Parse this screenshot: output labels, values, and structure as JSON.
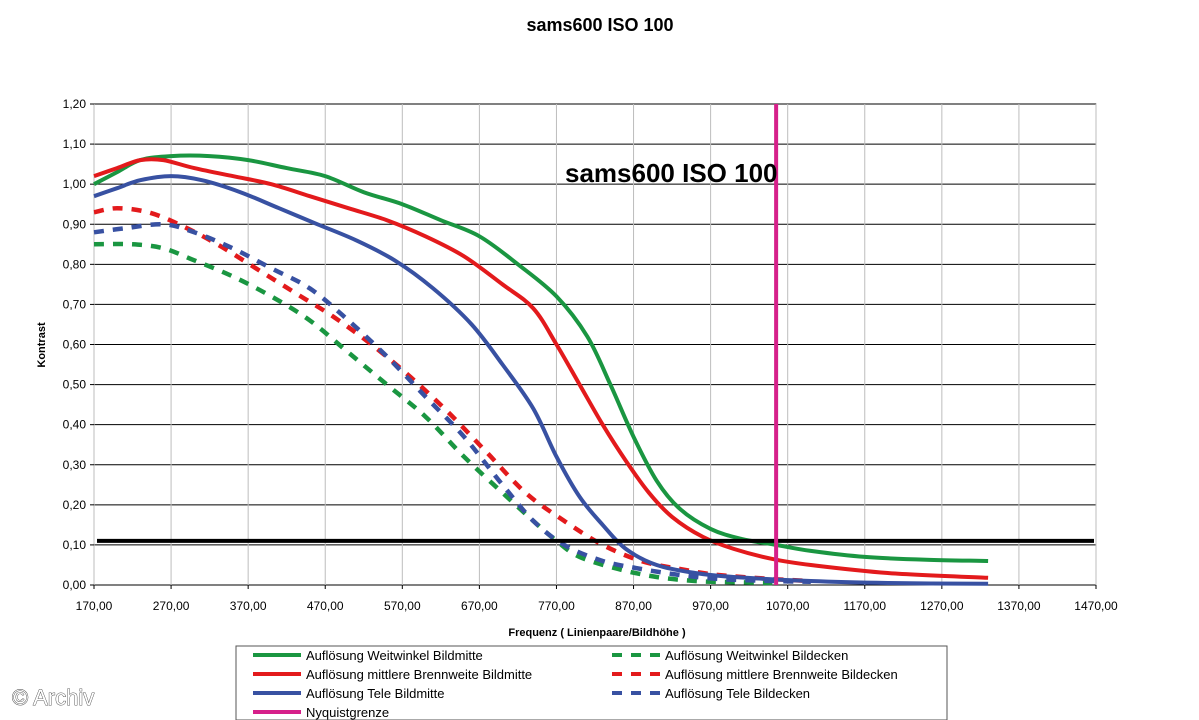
{
  "chart_data": {
    "type": "line",
    "title": "sams600 ISO 100",
    "inner_title": "sams600 ISO 100",
    "xlabel": "Frequenz ( Linienpaare/Bildhöhe )",
    "ylabel": "Kontrast",
    "xlim": [
      170,
      1470
    ],
    "ylim": [
      0,
      1.2
    ],
    "x_ticks": [
      "170,00",
      "270,00",
      "370,00",
      "470,00",
      "570,00",
      "670,00",
      "770,00",
      "870,00",
      "970,00",
      "1070,00",
      "1170,00",
      "1270,00",
      "1370,00",
      "1470,00"
    ],
    "y_ticks": [
      "0,00",
      "0,10",
      "0,20",
      "0,30",
      "0,40",
      "0,50",
      "0,60",
      "0,70",
      "0,80",
      "0,90",
      "1,00",
      "1,10",
      "1,20"
    ],
    "grid": true,
    "nyquist_x": 1055,
    "threshold_y": 0.11,
    "series": [
      {
        "name": "Auflösung Weitwinkel Bildmitte",
        "color": "#1a9641",
        "dash": false,
        "points": [
          [
            170,
            1.0
          ],
          [
            200,
            1.03
          ],
          [
            230,
            1.06
          ],
          [
            270,
            1.07
          ],
          [
            320,
            1.07
          ],
          [
            370,
            1.06
          ],
          [
            420,
            1.04
          ],
          [
            470,
            1.02
          ],
          [
            520,
            0.98
          ],
          [
            570,
            0.95
          ],
          [
            620,
            0.91
          ],
          [
            670,
            0.87
          ],
          [
            720,
            0.8
          ],
          [
            770,
            0.72
          ],
          [
            810,
            0.62
          ],
          [
            840,
            0.5
          ],
          [
            870,
            0.37
          ],
          [
            900,
            0.26
          ],
          [
            930,
            0.19
          ],
          [
            970,
            0.14
          ],
          [
            1010,
            0.115
          ],
          [
            1055,
            0.1
          ],
          [
            1100,
            0.085
          ],
          [
            1170,
            0.07
          ],
          [
            1250,
            0.063
          ],
          [
            1330,
            0.06
          ]
        ]
      },
      {
        "name": "Auflösung mittlere Brennweite Bildmitte",
        "color": "#e31a1c",
        "dash": false,
        "points": [
          [
            170,
            1.02
          ],
          [
            200,
            1.04
          ],
          [
            230,
            1.06
          ],
          [
            260,
            1.06
          ],
          [
            300,
            1.04
          ],
          [
            350,
            1.02
          ],
          [
            400,
            1.0
          ],
          [
            450,
            0.97
          ],
          [
            500,
            0.94
          ],
          [
            550,
            0.91
          ],
          [
            600,
            0.87
          ],
          [
            650,
            0.82
          ],
          [
            700,
            0.75
          ],
          [
            740,
            0.69
          ],
          [
            770,
            0.6
          ],
          [
            800,
            0.5
          ],
          [
            830,
            0.4
          ],
          [
            860,
            0.31
          ],
          [
            890,
            0.23
          ],
          [
            920,
            0.17
          ],
          [
            960,
            0.12
          ],
          [
            1000,
            0.09
          ],
          [
            1050,
            0.065
          ],
          [
            1100,
            0.05
          ],
          [
            1200,
            0.03
          ],
          [
            1330,
            0.018
          ]
        ]
      },
      {
        "name": "Auflösung Tele Bildmitte",
        "color": "#3851a2",
        "dash": false,
        "points": [
          [
            170,
            0.97
          ],
          [
            200,
            0.99
          ],
          [
            230,
            1.01
          ],
          [
            270,
            1.02
          ],
          [
            310,
            1.01
          ],
          [
            360,
            0.98
          ],
          [
            410,
            0.94
          ],
          [
            460,
            0.9
          ],
          [
            510,
            0.86
          ],
          [
            560,
            0.81
          ],
          [
            610,
            0.74
          ],
          [
            660,
            0.65
          ],
          [
            700,
            0.55
          ],
          [
            740,
            0.44
          ],
          [
            770,
            0.32
          ],
          [
            800,
            0.22
          ],
          [
            830,
            0.15
          ],
          [
            860,
            0.09
          ],
          [
            900,
            0.05
          ],
          [
            950,
            0.03
          ],
          [
            1000,
            0.02
          ],
          [
            1100,
            0.01
          ],
          [
            1200,
            0.005
          ],
          [
            1330,
            0.003
          ]
        ]
      },
      {
        "name": "Auflösung Weitwinkel Bildecken",
        "color": "#1a9641",
        "dash": true,
        "points": [
          [
            170,
            0.85
          ],
          [
            220,
            0.85
          ],
          [
            260,
            0.84
          ],
          [
            300,
            0.81
          ],
          [
            350,
            0.77
          ],
          [
            400,
            0.72
          ],
          [
            450,
            0.66
          ],
          [
            500,
            0.58
          ],
          [
            550,
            0.5
          ],
          [
            600,
            0.42
          ],
          [
            650,
            0.32
          ],
          [
            700,
            0.23
          ],
          [
            740,
            0.16
          ],
          [
            770,
            0.11
          ],
          [
            800,
            0.07
          ],
          [
            850,
            0.04
          ],
          [
            900,
            0.02
          ],
          [
            950,
            0.01
          ],
          [
            1000,
            0.007
          ],
          [
            1050,
            0.005
          ]
        ]
      },
      {
        "name": "Auflösung mittlere Brennweite Bildecken",
        "color": "#e31a1c",
        "dash": true,
        "points": [
          [
            170,
            0.93
          ],
          [
            200,
            0.94
          ],
          [
            240,
            0.93
          ],
          [
            280,
            0.9
          ],
          [
            330,
            0.85
          ],
          [
            380,
            0.79
          ],
          [
            430,
            0.73
          ],
          [
            480,
            0.67
          ],
          [
            530,
            0.6
          ],
          [
            580,
            0.52
          ],
          [
            630,
            0.43
          ],
          [
            680,
            0.33
          ],
          [
            730,
            0.23
          ],
          [
            780,
            0.16
          ],
          [
            830,
            0.1
          ],
          [
            880,
            0.06
          ],
          [
            930,
            0.04
          ],
          [
            980,
            0.025
          ],
          [
            1050,
            0.015
          ],
          [
            1100,
            0.01
          ]
        ]
      },
      {
        "name": "Auflösung Tele Bildecken",
        "color": "#3851a2",
        "dash": true,
        "points": [
          [
            170,
            0.88
          ],
          [
            210,
            0.89
          ],
          [
            260,
            0.9
          ],
          [
            300,
            0.88
          ],
          [
            350,
            0.84
          ],
          [
            400,
            0.79
          ],
          [
            450,
            0.74
          ],
          [
            500,
            0.66
          ],
          [
            550,
            0.57
          ],
          [
            600,
            0.47
          ],
          [
            650,
            0.37
          ],
          [
            700,
            0.25
          ],
          [
            740,
            0.16
          ],
          [
            780,
            0.1
          ],
          [
            830,
            0.06
          ],
          [
            880,
            0.04
          ],
          [
            930,
            0.025
          ],
          [
            980,
            0.015
          ],
          [
            1050,
            0.01
          ],
          [
            1100,
            0.008
          ]
        ]
      }
    ],
    "legend": {
      "placement": "bottom",
      "items": [
        {
          "label": "Auflösung Weitwinkel Bildmitte",
          "color": "#1a9641",
          "dash": false
        },
        {
          "label": "Auflösung Weitwinkel Bildecken",
          "color": "#1a9641",
          "dash": true
        },
        {
          "label": "Auflösung mittlere Brennweite Bildmitte",
          "color": "#e31a1c",
          "dash": false
        },
        {
          "label": "Auflösung mittlere Brennweite Bildecken",
          "color": "#e31a1c",
          "dash": true
        },
        {
          "label": "Auflösung Tele Bildmitte",
          "color": "#3851a2",
          "dash": false
        },
        {
          "label": "Auflösung Tele Bildecken",
          "color": "#3851a2",
          "dash": true
        },
        {
          "label": "Nyquistgrenze",
          "color": "#d6208a",
          "dash": false
        }
      ]
    },
    "nyquist_color": "#d6208a",
    "threshold_color": "#000000"
  },
  "watermark": "© Archiv"
}
